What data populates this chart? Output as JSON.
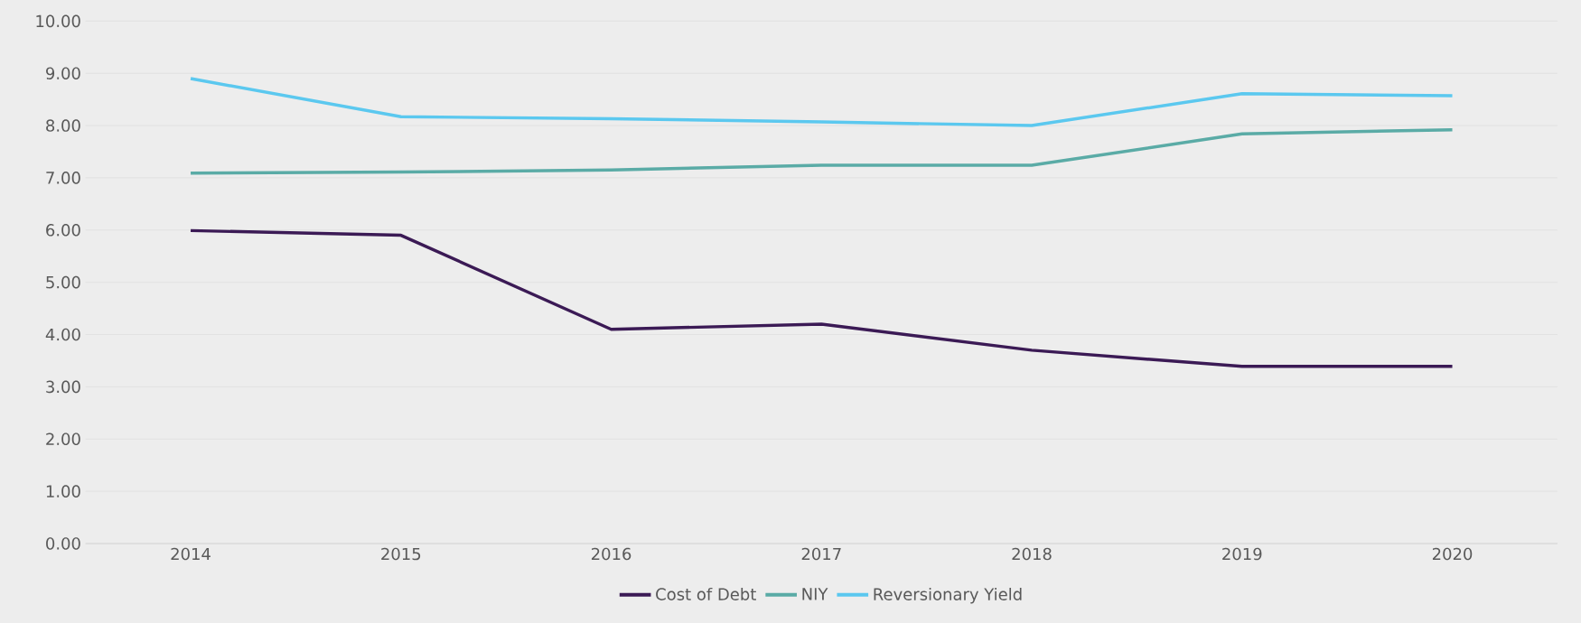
{
  "chart_data": {
    "type": "line",
    "categories": [
      "2014",
      "2015",
      "2016",
      "2017",
      "2018",
      "2019",
      "2020"
    ],
    "series": [
      {
        "name": "Cost of Debt",
        "color": "#3b1a55",
        "values": [
          5.99,
          5.9,
          4.1,
          4.2,
          3.7,
          3.39,
          3.39
        ]
      },
      {
        "name": "NIY",
        "color": "#5aaba6",
        "values": [
          7.09,
          7.11,
          7.15,
          7.24,
          7.24,
          7.84,
          7.92
        ]
      },
      {
        "name": "Reversionary Yield",
        "color": "#5bc8ef",
        "values": [
          8.9,
          8.17,
          8.13,
          8.07,
          8.0,
          8.61,
          8.57
        ]
      }
    ],
    "ylim": [
      0,
      10
    ],
    "yticks": [
      {
        "value": 0,
        "label": "0.00"
      },
      {
        "value": 1,
        "label": "1.00"
      },
      {
        "value": 2,
        "label": "2.00"
      },
      {
        "value": 3,
        "label": "3.00"
      },
      {
        "value": 4,
        "label": "4.00"
      },
      {
        "value": 5,
        "label": "5.00"
      },
      {
        "value": 6,
        "label": "6.00"
      },
      {
        "value": 7,
        "label": "7.00"
      },
      {
        "value": 8,
        "label": "8.00"
      },
      {
        "value": 9,
        "label": "9.00"
      },
      {
        "value": 10,
        "label": "10.00"
      }
    ],
    "grid": "y",
    "legend": "bottom",
    "marker": "none",
    "line_style": "solid"
  }
}
